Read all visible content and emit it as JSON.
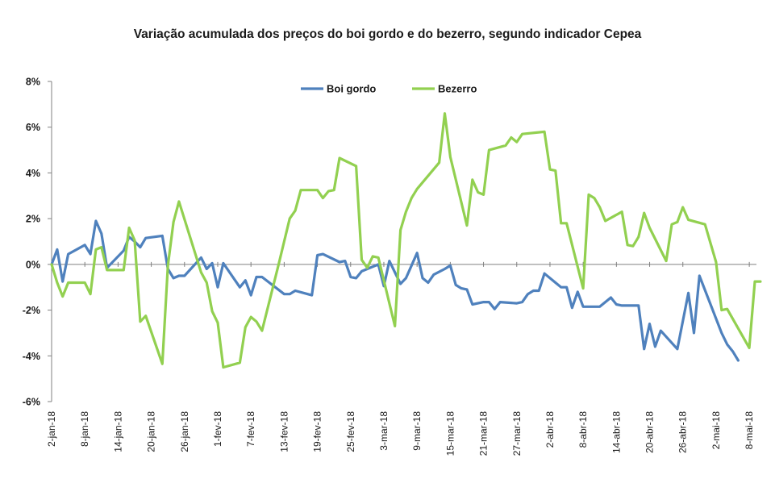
{
  "chart_data": {
    "type": "line",
    "title": "Variação acumulada dos preços do boi gordo e do bezerro, segundo indicador Cepea",
    "xlabel": "",
    "ylabel": "",
    "ylim": [
      -6,
      8
    ],
    "y_ticks": [
      -6,
      -4,
      -2,
      0,
      2,
      4,
      6,
      8
    ],
    "y_tick_labels": [
      "-6%",
      "-4%",
      "-2%",
      "0%",
      "2%",
      "4%",
      "6%",
      "8%"
    ],
    "x_range": [
      1,
      128
    ],
    "x_ticks": [
      1,
      7,
      13,
      19,
      25,
      31,
      37,
      43,
      49,
      55,
      61,
      67,
      73,
      79,
      85,
      91,
      97,
      103,
      109,
      115,
      121,
      127
    ],
    "x_tick_labels": [
      "2-jan-18",
      "8-jan-18",
      "14-jan-18",
      "20-jan-18",
      "26-jan-18",
      "1-fev-18",
      "7-fev-18",
      "13-fev-18",
      "19-fev-18",
      "25-fev-18",
      "3-mar-18",
      "9-mar-18",
      "15-mar-18",
      "21-mar-18",
      "27-mar-18",
      "2-abr-18",
      "8-abr-18",
      "14-abr-18",
      "20-abr-18",
      "26-abr-18",
      "2-mai-18",
      "8-mai-18"
    ],
    "grid": false,
    "legend_position": "top-center",
    "series": [
      {
        "name": "Boi gordo",
        "color": "#4f81bd",
        "points": [
          [
            1,
            0.0
          ],
          [
            2,
            0.65
          ],
          [
            3,
            -0.75
          ],
          [
            4,
            0.45
          ],
          [
            7,
            0.85
          ],
          [
            8,
            0.45
          ],
          [
            9,
            1.9
          ],
          [
            10,
            1.35
          ],
          [
            11,
            -0.15
          ],
          [
            14,
            0.6
          ],
          [
            15,
            1.2
          ],
          [
            16,
            1.0
          ],
          [
            17,
            0.75
          ],
          [
            18,
            1.15
          ],
          [
            21,
            1.25
          ],
          [
            22,
            -0.2
          ],
          [
            23,
            -0.6
          ],
          [
            24,
            -0.5
          ],
          [
            25,
            -0.5
          ],
          [
            28,
            0.3
          ],
          [
            29,
            -0.2
          ],
          [
            30,
            0.05
          ],
          [
            31,
            -1.0
          ],
          [
            32,
            0.05
          ],
          [
            35,
            -1.0
          ],
          [
            36,
            -0.7
          ],
          [
            37,
            -1.35
          ],
          [
            38,
            -0.55
          ],
          [
            39,
            -0.55
          ],
          [
            43,
            -1.3
          ],
          [
            44,
            -1.3
          ],
          [
            45,
            -1.15
          ],
          [
            48,
            -1.35
          ],
          [
            49,
            0.4
          ],
          [
            50,
            0.45
          ],
          [
            53,
            0.1
          ],
          [
            54,
            0.15
          ],
          [
            55,
            -0.55
          ],
          [
            56,
            -0.6
          ],
          [
            57,
            -0.3
          ],
          [
            60,
            0.0
          ],
          [
            61,
            -0.95
          ],
          [
            62,
            0.15
          ],
          [
            64,
            -0.85
          ],
          [
            65,
            -0.6
          ],
          [
            67,
            0.5
          ],
          [
            68,
            -0.6
          ],
          [
            69,
            -0.8
          ],
          [
            70,
            -0.45
          ],
          [
            72,
            -0.2
          ],
          [
            73,
            -0.05
          ],
          [
            74,
            -0.9
          ],
          [
            75,
            -1.05
          ],
          [
            76,
            -1.1
          ],
          [
            77,
            -1.75
          ],
          [
            79,
            -1.65
          ],
          [
            80,
            -1.65
          ],
          [
            81,
            -1.95
          ],
          [
            82,
            -1.65
          ],
          [
            85,
            -1.7
          ],
          [
            86,
            -1.65
          ],
          [
            87,
            -1.3
          ],
          [
            88,
            -1.15
          ],
          [
            89,
            -1.15
          ],
          [
            90,
            -0.4
          ],
          [
            92,
            -0.8
          ],
          [
            93,
            -1.0
          ],
          [
            94,
            -1.0
          ],
          [
            95,
            -1.9
          ],
          [
            96,
            -1.2
          ],
          [
            97,
            -1.85
          ],
          [
            100,
            -1.85
          ],
          [
            102,
            -1.45
          ],
          [
            103,
            -1.75
          ],
          [
            104,
            -1.8
          ],
          [
            107,
            -1.8
          ],
          [
            108,
            -3.7
          ],
          [
            109,
            -2.6
          ],
          [
            110,
            -3.6
          ],
          [
            111,
            -2.9
          ],
          [
            114,
            -3.7
          ],
          [
            116,
            -1.25
          ],
          [
            117,
            -3.0
          ],
          [
            118,
            -0.5
          ],
          [
            122,
            -3.0
          ],
          [
            123,
            -3.5
          ],
          [
            124,
            -3.8
          ],
          [
            125,
            -4.2
          ]
        ]
      },
      {
        "name": "Bezerro",
        "color": "#92d050",
        "points": [
          [
            1,
            0.0
          ],
          [
            2,
            -0.8
          ],
          [
            3,
            -1.4
          ],
          [
            4,
            -0.8
          ],
          [
            7,
            -0.8
          ],
          [
            8,
            -1.3
          ],
          [
            9,
            0.65
          ],
          [
            10,
            0.75
          ],
          [
            11,
            -0.25
          ],
          [
            14,
            -0.25
          ],
          [
            15,
            1.6
          ],
          [
            16,
            1.05
          ],
          [
            17,
            -2.5
          ],
          [
            18,
            -2.25
          ],
          [
            21,
            -4.35
          ],
          [
            22,
            -0.05
          ],
          [
            23,
            1.85
          ],
          [
            24,
            2.75
          ],
          [
            28,
            -0.35
          ],
          [
            29,
            -0.8
          ],
          [
            30,
            -2.05
          ],
          [
            31,
            -2.55
          ],
          [
            32,
            -4.5
          ],
          [
            35,
            -4.3
          ],
          [
            36,
            -2.75
          ],
          [
            37,
            -2.3
          ],
          [
            38,
            -2.5
          ],
          [
            39,
            -2.9
          ],
          [
            42,
            0.0
          ],
          [
            44,
            2.0
          ],
          [
            45,
            2.35
          ],
          [
            46,
            3.25
          ],
          [
            49,
            3.25
          ],
          [
            50,
            2.9
          ],
          [
            51,
            3.2
          ],
          [
            52,
            3.25
          ],
          [
            53,
            4.65
          ],
          [
            56,
            4.3
          ],
          [
            57,
            0.2
          ],
          [
            58,
            -0.15
          ],
          [
            59,
            0.35
          ],
          [
            60,
            0.3
          ],
          [
            63,
            -2.7
          ],
          [
            64,
            1.5
          ],
          [
            65,
            2.3
          ],
          [
            66,
            2.9
          ],
          [
            67,
            3.3
          ],
          [
            71,
            4.45
          ],
          [
            72,
            6.6
          ],
          [
            73,
            4.7
          ],
          [
            76,
            1.7
          ],
          [
            77,
            3.7
          ],
          [
            78,
            3.15
          ],
          [
            79,
            3.05
          ],
          [
            80,
            5.0
          ],
          [
            83,
            5.2
          ],
          [
            84,
            5.55
          ],
          [
            85,
            5.35
          ],
          [
            86,
            5.7
          ],
          [
            90,
            5.8
          ],
          [
            91,
            4.15
          ],
          [
            92,
            4.1
          ],
          [
            93,
            1.8
          ],
          [
            94,
            1.8
          ],
          [
            97,
            -1.05
          ],
          [
            98,
            3.05
          ],
          [
            99,
            2.9
          ],
          [
            100,
            2.5
          ],
          [
            101,
            1.9
          ],
          [
            104,
            2.3
          ],
          [
            105,
            0.85
          ],
          [
            106,
            0.8
          ],
          [
            107,
            1.2
          ],
          [
            108,
            2.25
          ],
          [
            109,
            1.6
          ],
          [
            112,
            0.15
          ],
          [
            113,
            1.75
          ],
          [
            114,
            1.85
          ],
          [
            115,
            2.5
          ],
          [
            116,
            1.95
          ],
          [
            119,
            1.75
          ],
          [
            121,
            0.1
          ],
          [
            122,
            -2.0
          ],
          [
            123,
            -1.95
          ],
          [
            127,
            -3.65
          ],
          [
            128,
            -0.75
          ],
          [
            129,
            -0.75
          ]
        ]
      }
    ]
  }
}
